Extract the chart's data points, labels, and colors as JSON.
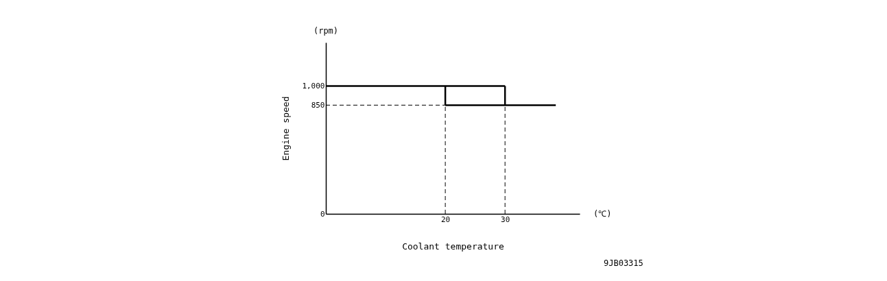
{
  "chart_data": {
    "type": "line",
    "xlabel": "Coolant temperature",
    "ylabel": "Engine speed",
    "xlim": [
      0,
      42.5
    ],
    "ylim": [
      0,
      1340
    ],
    "xticks": [
      20,
      30
    ],
    "yticks": [
      0,
      850,
      {
        "value": 1000,
        "label": "1,000"
      }
    ],
    "grid": false,
    "marker": "none",
    "series": [
      {
        "color": "#000000",
        "line_style": "solid",
        "x": [
          0,
          30
        ],
        "values": [
          1000,
          1000
        ]
      },
      {
        "color": "#000000",
        "line_style": "solid",
        "x": [
          20,
          38.5
        ],
        "values": [
          850,
          850
        ]
      },
      {
        "color": "#000000",
        "line_style": "solid",
        "x": [
          20,
          20
        ],
        "values": [
          850,
          1000
        ]
      },
      {
        "color": "#000000",
        "line_style": "solid",
        "x": [
          30,
          30
        ],
        "values": [
          1000,
          850
        ]
      },
      {
        "color": "#000000",
        "line_style": "dashed",
        "x": [
          0,
          20
        ],
        "values": [
          850,
          850
        ]
      },
      {
        "color": "#000000",
        "line_style": "dashed",
        "x": [
          20,
          20
        ],
        "values": [
          0,
          850
        ]
      },
      {
        "color": "#000000",
        "line_style": "dashed",
        "x": [
          30,
          30
        ],
        "values": [
          0,
          850
        ]
      }
    ],
    "annotations": [
      "(rpm)",
      "(℃)",
      "9JB03315"
    ]
  }
}
